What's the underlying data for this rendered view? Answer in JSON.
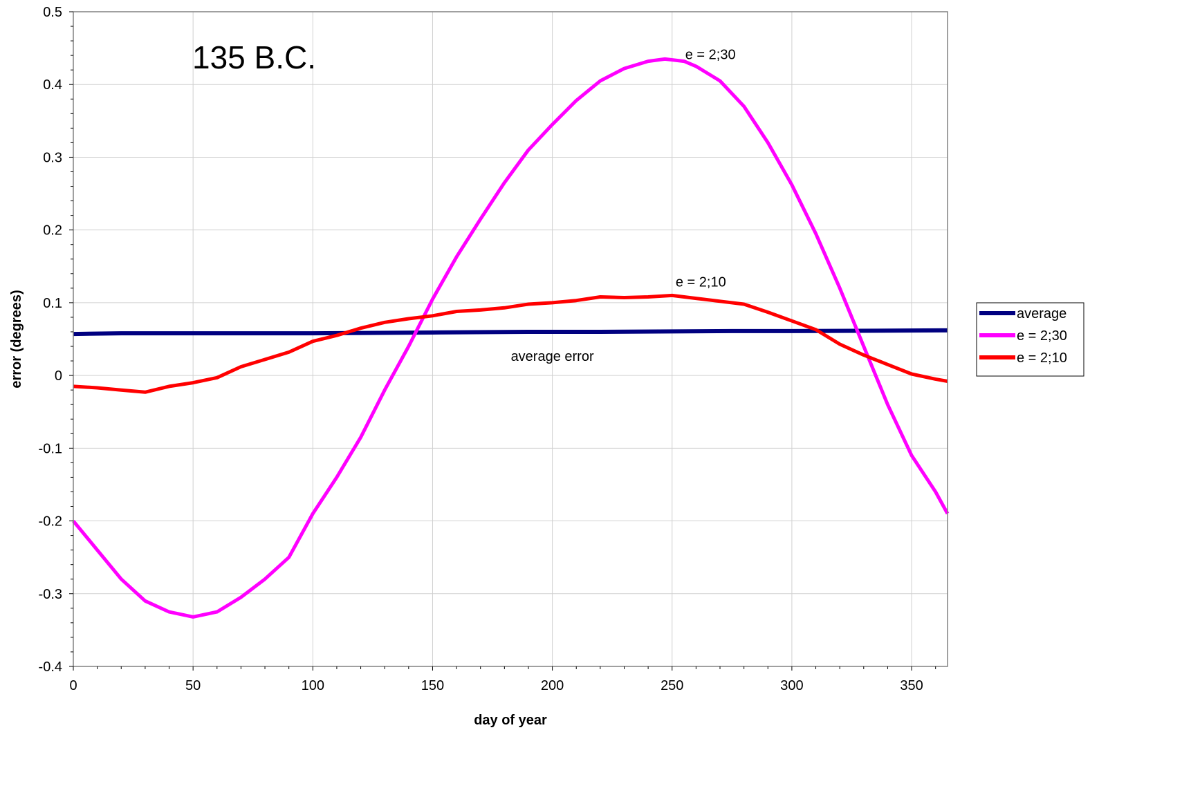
{
  "chart_data": {
    "type": "line",
    "title": "",
    "xlabel": "day of year",
    "ylabel": "error (degrees)",
    "xlim": [
      0,
      365
    ],
    "ylim": [
      -0.4,
      0.5
    ],
    "xticks": [
      0,
      50,
      100,
      150,
      200,
      250,
      300,
      350
    ],
    "yticks": [
      -0.4,
      -0.3,
      -0.2,
      -0.1,
      0,
      0.1,
      0.2,
      0.3,
      0.4,
      0.5
    ],
    "ytick_labels": [
      "-0.4",
      "-0.3",
      "-0.2",
      "-0.1",
      "0",
      "0.1",
      "0.2",
      "0.3",
      "0.4",
      "0.5"
    ],
    "grid": true,
    "legend_position": "right",
    "annotations": [
      {
        "text": "135 B.C.",
        "x": 50,
        "y": 0.44,
        "size": "large"
      },
      {
        "text": "e = 2;30",
        "x": 266,
        "y": 0.435,
        "size": "normal"
      },
      {
        "text": "e = 2;10",
        "x": 262,
        "y": 0.122,
        "size": "normal"
      },
      {
        "text": "average error",
        "x": 200,
        "y": 0.02,
        "size": "normal"
      }
    ],
    "series": [
      {
        "name": "average",
        "color": "#000080",
        "x": [
          0,
          20,
          50,
          100,
          150,
          190,
          220,
          275,
          300,
          362,
          365
        ],
        "y": [
          0.057,
          0.058,
          0.058,
          0.058,
          0.059,
          0.06,
          0.06,
          0.061,
          0.061,
          0.062,
          0.062
        ]
      },
      {
        "name": "e = 2;30",
        "color": "#FF00FF",
        "x": [
          0,
          10,
          20,
          30,
          40,
          50,
          60,
          70,
          80,
          90,
          100,
          110,
          120,
          130,
          140,
          150,
          160,
          170,
          180,
          190,
          200,
          210,
          220,
          230,
          240,
          247,
          255,
          260,
          270,
          280,
          290,
          300,
          310,
          320,
          330,
          340,
          350,
          360,
          365
        ],
        "y": [
          -0.2,
          -0.24,
          -0.28,
          -0.31,
          -0.325,
          -0.332,
          -0.325,
          -0.305,
          -0.28,
          -0.25,
          -0.19,
          -0.14,
          -0.085,
          -0.02,
          0.04,
          0.105,
          0.163,
          0.215,
          0.265,
          0.31,
          0.345,
          0.378,
          0.405,
          0.422,
          0.432,
          0.435,
          0.432,
          0.425,
          0.405,
          0.37,
          0.32,
          0.262,
          0.195,
          0.12,
          0.04,
          -0.04,
          -0.11,
          -0.16,
          -0.19
        ]
      },
      {
        "name": "e = 2;10",
        "color": "#FF0000",
        "x": [
          0,
          10,
          20,
          30,
          40,
          50,
          60,
          70,
          80,
          90,
          100,
          110,
          120,
          130,
          140,
          150,
          160,
          170,
          180,
          190,
          200,
          210,
          220,
          230,
          240,
          250,
          260,
          270,
          280,
          290,
          300,
          310,
          320,
          330,
          340,
          350,
          360,
          365
        ],
        "y": [
          -0.015,
          -0.017,
          -0.02,
          -0.023,
          -0.015,
          -0.01,
          -0.003,
          0.012,
          0.022,
          0.032,
          0.047,
          0.055,
          0.065,
          0.073,
          0.078,
          0.082,
          0.088,
          0.09,
          0.093,
          0.098,
          0.1,
          0.103,
          0.108,
          0.107,
          0.108,
          0.11,
          0.106,
          0.102,
          0.098,
          0.087,
          0.075,
          0.063,
          0.043,
          0.028,
          0.015,
          0.002,
          -0.005,
          -0.008
        ]
      }
    ]
  }
}
